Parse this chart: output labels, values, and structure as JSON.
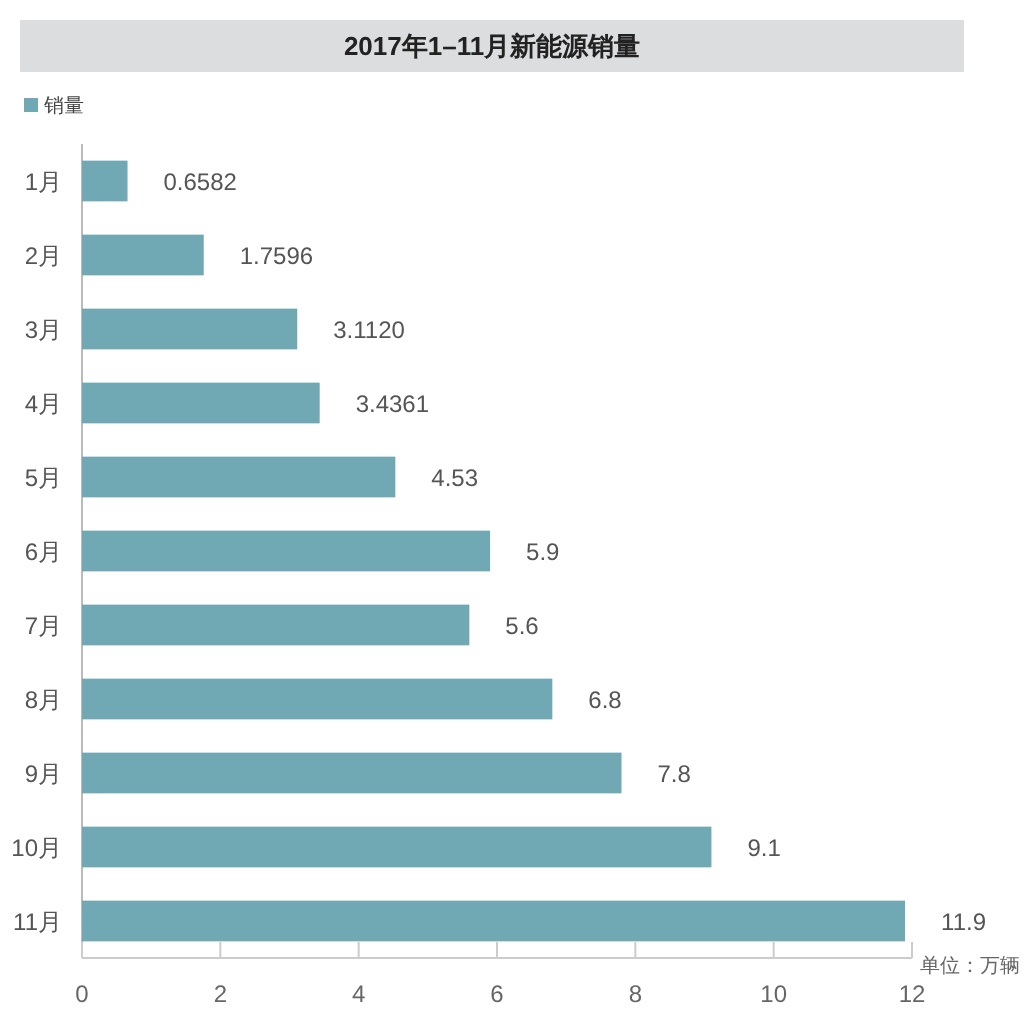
{
  "chart_data": {
    "type": "bar",
    "orientation": "horizontal",
    "title": "2017年1–11月新能源销量",
    "categories": [
      "1月",
      "2月",
      "3月",
      "4月",
      "5月",
      "6月",
      "7月",
      "8月",
      "9月",
      "10月",
      "11月"
    ],
    "series": [
      {
        "name": "销量",
        "color": "#70a8b3",
        "values": [
          0.6582,
          1.7596,
          3.112,
          3.4361,
          4.53,
          5.9,
          5.6,
          6.8,
          7.8,
          9.1,
          11.9
        ],
        "value_labels": [
          "0.6582",
          "1.7596",
          "3.1120",
          "3.4361",
          "4.53",
          "5.9",
          "5.6",
          "6.8",
          "7.8",
          "9.1",
          "11.9"
        ]
      }
    ],
    "xlim": [
      0,
      12
    ],
    "xticks": [
      0,
      2,
      4,
      6,
      8,
      10,
      12
    ],
    "legend": "top left",
    "annotations": [
      "单位：万辆"
    ]
  }
}
